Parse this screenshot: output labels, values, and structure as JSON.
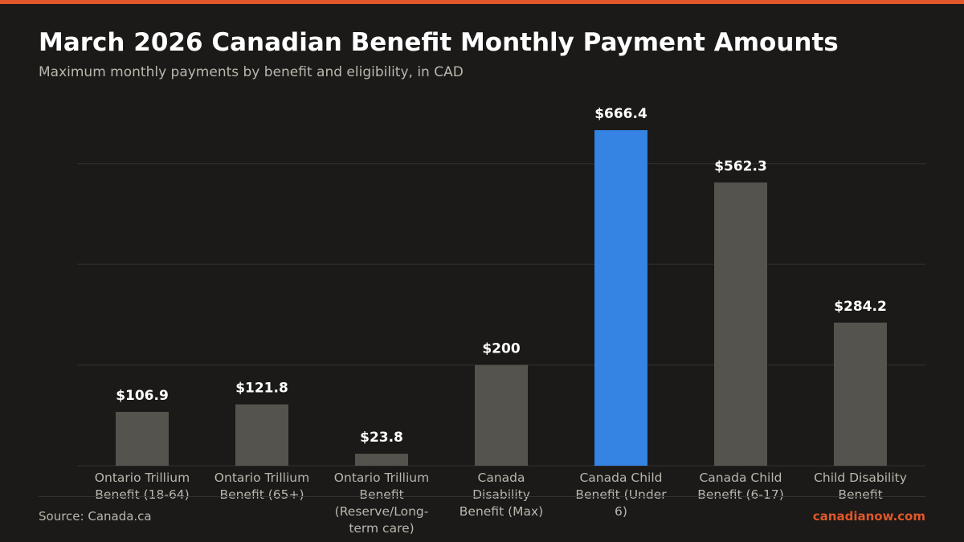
{
  "colors": {
    "accent": "#e0572a",
    "highlight": "#3583e2",
    "bar": "#55534d",
    "background": "#1b1a18",
    "grid": "#34332f",
    "text": "#ffffff",
    "muted_text": "#b9b6ae"
  },
  "header": {
    "title": "March 2026 Canadian Benefit Monthly Payment Amounts",
    "subtitle": "Maximum monthly payments by benefit and eligibility, in CAD"
  },
  "footer": {
    "source": "Source: Canada.ca",
    "brand": "canadianow.com"
  },
  "chart_data": {
    "type": "bar",
    "title": "March 2026 Canadian Benefit Monthly Payment Amounts",
    "subtitle": "Maximum monthly payments by benefit and eligibility, in CAD",
    "xlabel": "",
    "ylabel": "",
    "categories": [
      "Ontario Trillium Benefit (18-64)",
      "Ontario Trillium Benefit (65+)",
      "Ontario Trillium Benefit (Reserve/Long-term care)",
      "Canada Disability Benefit (Max)",
      "Canada Child Benefit (Under 6)",
      "Canada Child Benefit (6-17)",
      "Child Disability Benefit"
    ],
    "category_label_lines": [
      [
        "Ontario Trillium",
        "Benefit (18-64)"
      ],
      [
        "Ontario Trillium",
        "Benefit (65+)"
      ],
      [
        "Ontario Trillium",
        "Benefit",
        "(Reserve/Long-",
        "term care)"
      ],
      [
        "Canada",
        "Disability",
        "Benefit (Max)"
      ],
      [
        "Canada Child",
        "Benefit (Under",
        "6)"
      ],
      [
        "Canada Child",
        "Benefit (6-17)"
      ],
      [
        "Child Disability",
        "Benefit"
      ]
    ],
    "values": [
      106.9,
      121.8,
      23.8,
      200,
      666.4,
      562.3,
      284.2
    ],
    "value_labels": [
      "$106.9",
      "$121.8",
      "$23.8",
      "$200",
      "$666.4",
      "$562.3",
      "$284.2"
    ],
    "highlight_index": 4,
    "ylim": [
      0,
      700
    ],
    "gridlines": [
      0,
      200,
      400,
      600
    ],
    "grid": true,
    "y_tick_labels_shown": false,
    "legend": "none",
    "currency": "CAD"
  }
}
